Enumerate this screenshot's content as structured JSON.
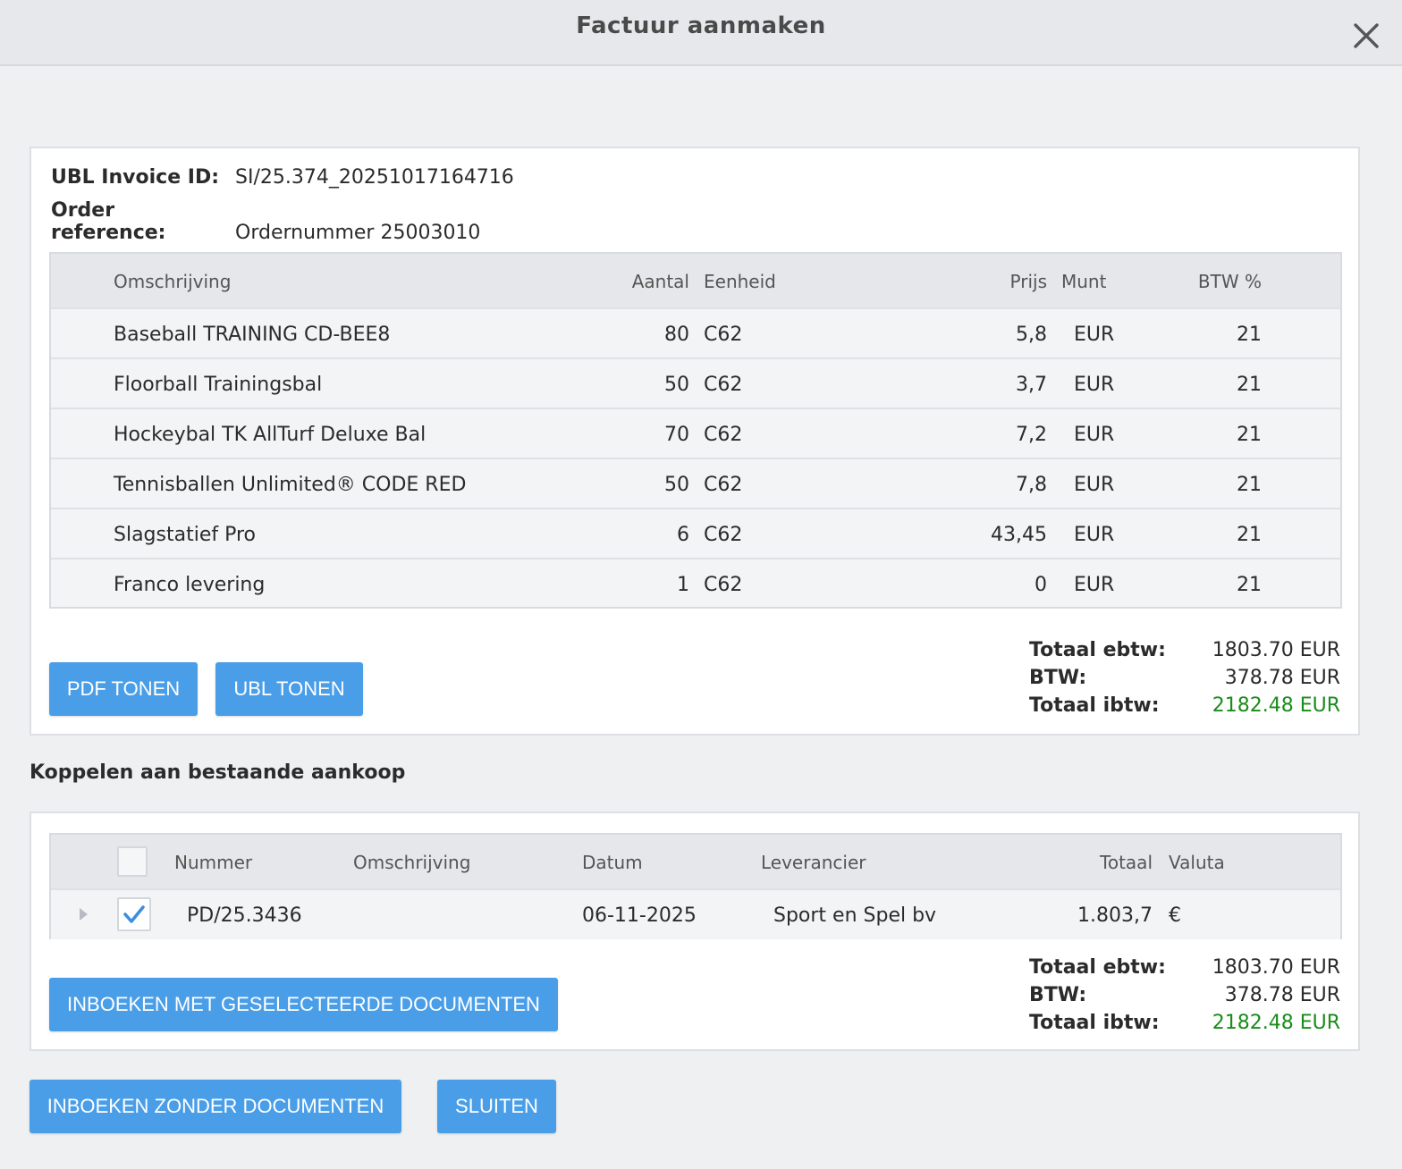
{
  "dialog": {
    "title": "Factuur aanmaken"
  },
  "invoice": {
    "ubl_label": "UBL Invoice ID:",
    "ubl_value": "SI/25.374_20251017164716",
    "order_label": "Order reference:",
    "order_value": "Ordernummer 25003010"
  },
  "lines": {
    "headers": {
      "description": "Omschrijving",
      "qty": "Aantal",
      "unit": "Eenheid",
      "price": "Prijs",
      "currency": "Munt",
      "vat": "BTW %"
    },
    "rows": [
      {
        "description": "Baseball TRAINING CD-BEE8",
        "qty": "80",
        "unit": "C62",
        "price": "5,8",
        "currency": "EUR",
        "vat": "21"
      },
      {
        "description": "Floorball Trainingsbal",
        "qty": "50",
        "unit": "C62",
        "price": "3,7",
        "currency": "EUR",
        "vat": "21"
      },
      {
        "description": "Hockeybal TK AllTurf Deluxe Bal",
        "qty": "70",
        "unit": "C62",
        "price": "7,2",
        "currency": "EUR",
        "vat": "21"
      },
      {
        "description": "Tennisballen Unlimited® CODE RED",
        "qty": "50",
        "unit": "C62",
        "price": "7,8",
        "currency": "EUR",
        "vat": "21"
      },
      {
        "description": "Slagstatief Pro",
        "qty": "6",
        "unit": "C62",
        "price": "43,45",
        "currency": "EUR",
        "vat": "21"
      },
      {
        "description": "Franco levering",
        "qty": "1",
        "unit": "C62",
        "price": "0",
        "currency": "EUR",
        "vat": "21"
      }
    ]
  },
  "buttons": {
    "pdf": "PDF TONEN",
    "ubl": "UBL TONEN",
    "book_selected": "INBOEKEN MET GESELECTEERDE DOCUMENTEN",
    "book_without": "INBOEKEN ZONDER DOCUMENTEN",
    "close": "SLUITEN"
  },
  "totals": {
    "excl_label": "Totaal ebtw:",
    "excl_value": "1803.70 EUR",
    "vat_label": "BTW:",
    "vat_value": "378.78 EUR",
    "incl_label": "Totaal ibtw:",
    "incl_value": "2182.48 EUR",
    "incl_color": "#1a8c1a"
  },
  "link": {
    "heading": "Koppelen aan bestaande aankoop",
    "headers": {
      "number": "Nummer",
      "description": "Omschrijving",
      "date": "Datum",
      "supplier": "Leverancier",
      "total": "Totaal",
      "currency": "Valuta"
    },
    "rows": [
      {
        "number": "PD/25.3436",
        "description": "",
        "date": "06-11-2025",
        "supplier": "Sport en Spel bv",
        "total": "1.803,7",
        "currency": "€",
        "checked": true
      }
    ],
    "totals": {
      "excl_label": "Totaal ebtw:",
      "excl_value": "1803.70 EUR",
      "vat_label": "BTW:",
      "vat_value": "378.78 EUR",
      "incl_label": "Totaal ibtw:",
      "incl_value": "2182.48 EUR"
    }
  },
  "colors": {
    "accent": "#4a9ee8",
    "positive": "#1a8c1a"
  },
  "icons": {
    "close": "close-icon",
    "check": "check-icon",
    "expand": "expand-arrow-icon"
  }
}
